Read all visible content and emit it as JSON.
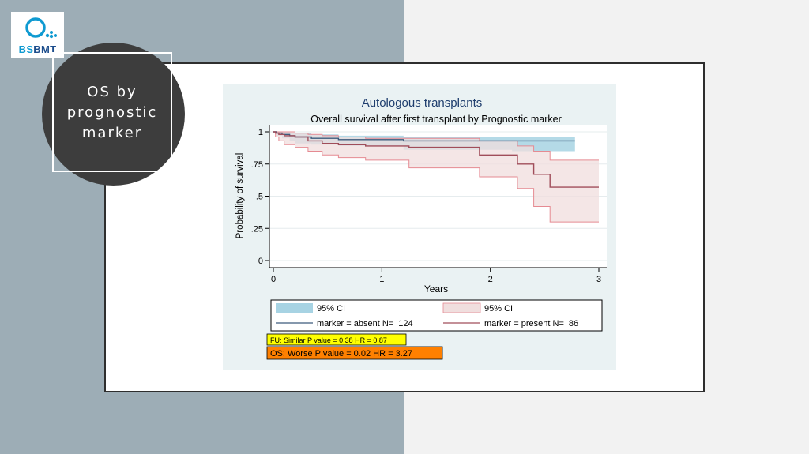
{
  "logo": {
    "text_bs": "BS",
    "text_bmt": "BMT"
  },
  "slide": {
    "title": "OS by\nprognostic\nmarker"
  },
  "colors": {
    "left_panel": "#9dadb6",
    "absent_line": "#3c5a7c",
    "absent_ci": "#a7d3e3",
    "present_line": "#a04d5a",
    "present_ci_fill": "#f0dede",
    "present_ci_edge": "#e58a92",
    "box_yellow": "#ffff00",
    "box_orange": "#ff8000"
  },
  "chart_data": {
    "type": "line",
    "title": "Autologous transplants",
    "subtitle": "Overall survival after first transplant by Prognostic marker",
    "xlabel": "Years",
    "ylabel": "Probability of survival",
    "xlim": [
      0,
      3
    ],
    "ylim": [
      0,
      1
    ],
    "xticks": [
      "0",
      "1",
      "2",
      "3"
    ],
    "yticks": [
      "0",
      ".25",
      ".5",
      ".75",
      "1"
    ],
    "grid": true,
    "legend_position": "bottom",
    "legend": {
      "ci_absent": "95% CI",
      "ci_present": "95% CI",
      "absent_label": "marker = absent N=",
      "absent_n": "124",
      "present_label": "marker = present N=",
      "present_n": "86"
    },
    "series": [
      {
        "name": "marker = absent",
        "x": [
          0,
          0.03,
          0.08,
          0.15,
          0.2,
          0.35,
          0.6,
          1.2,
          2.2,
          2.78
        ],
        "y": [
          1,
          0.99,
          0.98,
          0.97,
          0.96,
          0.95,
          0.94,
          0.93,
          0.93,
          0.93
        ],
        "ci_lower": [
          1,
          0.97,
          0.95,
          0.93,
          0.91,
          0.9,
          0.89,
          0.86,
          0.85,
          0.85
        ],
        "ci_upper": [
          1,
          1,
          1,
          0.99,
          0.99,
          0.98,
          0.97,
          0.96,
          0.96,
          0.96
        ]
      },
      {
        "name": "marker = present",
        "x": [
          0,
          0.02,
          0.05,
          0.1,
          0.2,
          0.32,
          0.45,
          0.6,
          0.85,
          1.25,
          1.9,
          2.25,
          2.4,
          2.55,
          3
        ],
        "y": [
          1,
          0.99,
          0.98,
          0.97,
          0.96,
          0.93,
          0.91,
          0.9,
          0.89,
          0.88,
          0.82,
          0.75,
          0.67,
          0.57,
          0.57
        ],
        "ci_lower": [
          1,
          0.96,
          0.93,
          0.9,
          0.88,
          0.85,
          0.82,
          0.8,
          0.78,
          0.72,
          0.65,
          0.56,
          0.42,
          0.3,
          0.3
        ],
        "ci_upper": [
          1,
          1,
          1,
          1,
          0.99,
          0.98,
          0.97,
          0.96,
          0.95,
          0.95,
          0.93,
          0.89,
          0.85,
          0.78,
          0.78
        ]
      }
    ],
    "annotations": [
      {
        "text": "FU: Similar P value = 0.38 HR = 0.87",
        "color": "#ffff00"
      },
      {
        "text": "OS: Worse P value = 0.02 HR = 3.27",
        "color": "#ff8000"
      }
    ]
  }
}
